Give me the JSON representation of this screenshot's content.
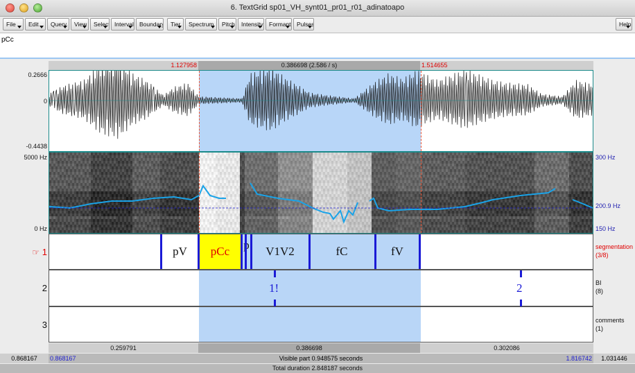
{
  "window": {
    "title": "6. TextGrid sp01_VH_synt01_pr01_r01_adinatoapo"
  },
  "menu": [
    "File",
    "Edit",
    "Query",
    "View",
    "Select",
    "Interval",
    "Boundary",
    "Tier",
    "Spectrum",
    "Pitch",
    "Intensity",
    "Formant",
    "Pulses"
  ],
  "menu_help": "Help",
  "text_field": "pCc",
  "selection": {
    "start": "1.127958",
    "duration": "0.386698 (2.586 / s)",
    "end": "1.514655"
  },
  "waveform": {
    "top": "0.2666",
    "zero": "0",
    "bottom": "-0.4438"
  },
  "spectrogram": {
    "freq_top": "5000 Hz",
    "freq_bottom": "0 Hz",
    "pitch_top": "300 Hz",
    "pitch_cursor": "200.9 Hz",
    "pitch_bottom": "150 Hz"
  },
  "tiers": [
    {
      "number": "1",
      "pointer": "☞",
      "name": "segmentation",
      "count": "(3/8)",
      "intervals": [
        "pV",
        "pCc",
        "p",
        "V1V2",
        "fC",
        "fV"
      ]
    },
    {
      "number": "2",
      "name": "BI",
      "count": "(8)",
      "points": [
        "1!",
        "2"
      ]
    },
    {
      "number": "3",
      "name": "comments",
      "count": "(1)"
    }
  ],
  "durations": {
    "left": "0.259791",
    "middle": "0.386698",
    "right": "0.302086"
  },
  "visible": {
    "window_start": "0.868167",
    "start": "0.868167",
    "label": "Visible part 0.948575 seconds",
    "end": "1.816742",
    "window_end": "1.031446"
  },
  "total": "Total duration 2.848187 seconds",
  "colors": {
    "selection": "#a0c8f5",
    "pitch_curve": "#1aa3e8",
    "boundary": "#1a1ad6",
    "highlight": "#ffff00",
    "accent_red": "#e00000"
  }
}
